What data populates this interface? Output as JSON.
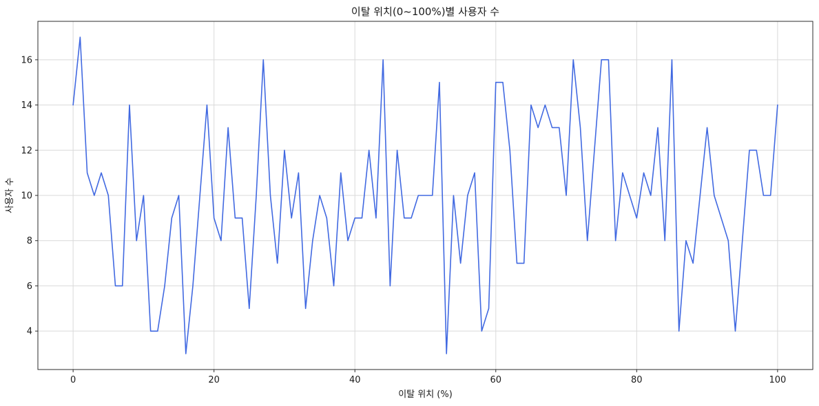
{
  "chart_data": {
    "type": "line",
    "title": "이탈 위치(0~100%)별 사용자 수",
    "xlabel": "이탈 위치 (%)",
    "ylabel": "사용자 수",
    "x_start": 0,
    "x_step": 1,
    "values": [
      14,
      17,
      11,
      10,
      11,
      10,
      6,
      6,
      14,
      8,
      10,
      4,
      4,
      6,
      9,
      10,
      3,
      6,
      10,
      14,
      9,
      8,
      13,
      9,
      9,
      5,
      10,
      16,
      10,
      7,
      12,
      9,
      11,
      5,
      8,
      10,
      9,
      6,
      11,
      8,
      9,
      9,
      12,
      9,
      16,
      6,
      12,
      9,
      9,
      10,
      10,
      10,
      15,
      3,
      10,
      7,
      10,
      11,
      4,
      5,
      15,
      15,
      12,
      7,
      7,
      14,
      13,
      14,
      13,
      13,
      10,
      16,
      13,
      8,
      12,
      16,
      16,
      8,
      11,
      10,
      9,
      11,
      10,
      13,
      8,
      16,
      4,
      8,
      7,
      10,
      13,
      10,
      9,
      8,
      4,
      8,
      12,
      12,
      10,
      10,
      14
    ],
    "xticks": [
      0,
      20,
      40,
      60,
      80,
      100
    ],
    "yticks": [
      4,
      6,
      8,
      10,
      12,
      14,
      16
    ],
    "xlim": [
      -5,
      105
    ],
    "ylim": [
      2.3,
      17.7
    ],
    "grid": true,
    "legend": "none",
    "line_color": "#4169e1",
    "line_width": 1.6,
    "background": "#ffffff",
    "grid_color": "#d9d9d9",
    "spine_color": "#2b2b2b",
    "tick_color": "#2b2b2b"
  }
}
